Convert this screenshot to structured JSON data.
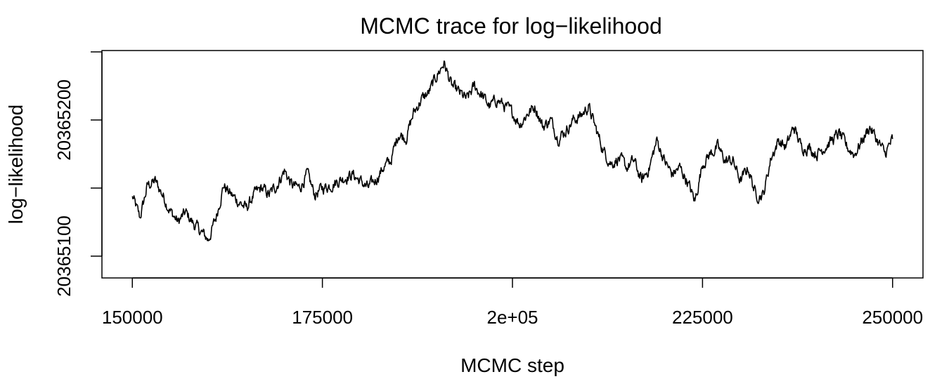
{
  "chart_data": {
    "type": "line",
    "title": "MCMC trace for log−likelihood",
    "xlabel": "MCMC step",
    "ylabel": "log−likelihood",
    "xlim": [
      146000,
      254000
    ],
    "ylim": [
      20365084,
      20365251
    ],
    "xticks": [
      150000,
      175000,
      200000,
      225000,
      250000
    ],
    "xtick_labels": [
      "150000",
      "175000",
      "2e+05",
      "225000",
      "250000"
    ],
    "yticks": [
      20365100,
      20365150,
      20365200,
      20365250
    ],
    "ytick_labels": [
      "20365100",
      "",
      "20365200",
      ""
    ],
    "grid": false,
    "series": [
      {
        "x": [
          150000,
          151000,
          152000,
          153000,
          154000,
          155000,
          156000,
          157000,
          158000,
          159000,
          160000,
          161000,
          162000,
          163000,
          164000,
          165000,
          166000,
          167000,
          168000,
          169000,
          170000,
          171000,
          172000,
          173000,
          174000,
          175000,
          176000,
          177000,
          178000,
          179000,
          180000,
          181000,
          182000,
          183000,
          184000,
          185000,
          186000,
          187000,
          188000,
          189000,
          190000,
          191000,
          192000,
          193000,
          194000,
          195000,
          196000,
          197000,
          198000,
          199000,
          200000,
          201000,
          202000,
          203000,
          204000,
          205000,
          206000,
          207000,
          208000,
          209000,
          210000,
          211000,
          212000,
          213000,
          214000,
          215000,
          216000,
          217000,
          218000,
          219000,
          220000,
          221000,
          222000,
          223000,
          224000,
          225000,
          226000,
          227000,
          228000,
          229000,
          230000,
          231000,
          232000,
          233000,
          234000,
          235000,
          236000,
          237000,
          238000,
          239000,
          240000,
          241000,
          242000,
          243000,
          244000,
          245000,
          246000,
          247000,
          248000,
          249000,
          250000
        ],
        "y": [
          20365144,
          20365128,
          20365152,
          20365155,
          20365145,
          20365133,
          20365125,
          20365132,
          20365124,
          20365118,
          20365112,
          20365128,
          20365152,
          20365145,
          20365140,
          20365135,
          20365145,
          20365150,
          20365145,
          20365152,
          20365163,
          20365152,
          20365150,
          20365160,
          20365145,
          20365150,
          20365152,
          20365155,
          20365158,
          20365160,
          20365155,
          20365150,
          20365156,
          20365165,
          20365170,
          20365190,
          20365187,
          20365205,
          20365215,
          20365220,
          20365232,
          20365242,
          20365225,
          20365220,
          20365215,
          20365225,
          20365218,
          20365210,
          20365215,
          20365210,
          20365205,
          20365197,
          20365205,
          20365210,
          20365195,
          20365200,
          20365187,
          20365192,
          20365200,
          20365203,
          20365210,
          20365193,
          20365177,
          20365168,
          20365172,
          20365165,
          20365170,
          20365155,
          20365165,
          20365185,
          20365170,
          20365160,
          20365165,
          20365155,
          20365140,
          20365168,
          20365175,
          20365180,
          20365170,
          20365170,
          20365155,
          20365165,
          20365145,
          20365145,
          20365172,
          20365185,
          20365180,
          20365195,
          20365180,
          20365180,
          20365175,
          20365180,
          20365185,
          20365190,
          20365180,
          20365175,
          20365185,
          20365195,
          20365185,
          20365175,
          20365186
        ]
      }
    ]
  }
}
